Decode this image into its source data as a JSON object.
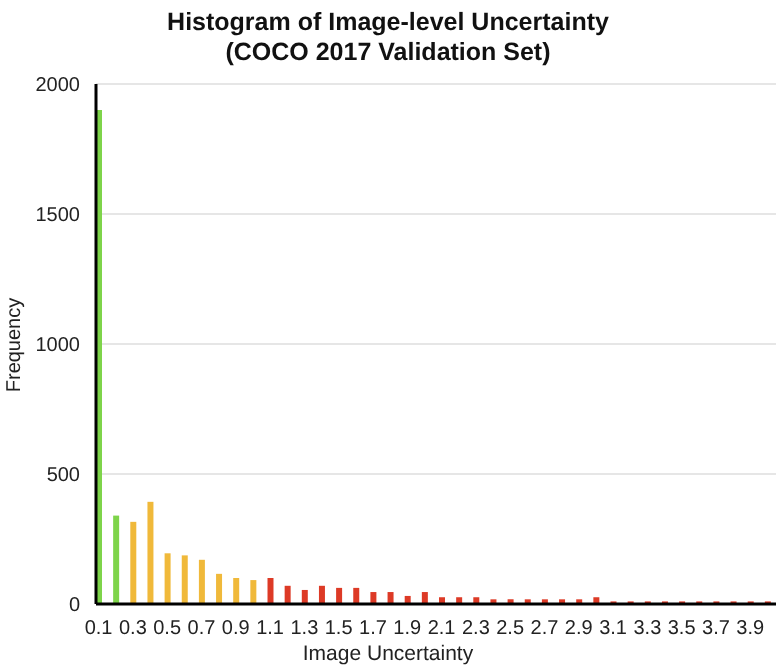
{
  "chart_data": {
    "type": "bar",
    "title": "Histogram of Image-level Uncertainty\n(COCO 2017 Validation Set)",
    "xlabel": "Image Uncertainty",
    "ylabel": "Frequency",
    "categories": [
      "0.1",
      null,
      "0.3",
      null,
      "0.5",
      null,
      "0.7",
      null,
      "0.9",
      null,
      "1.1",
      null,
      "1.3",
      null,
      "1.5",
      null,
      "1.7",
      null,
      "1.9",
      null,
      "2.1",
      null,
      "2.3",
      null,
      "2.5",
      null,
      "2.7",
      null,
      "2.9",
      null,
      "3.1",
      null,
      "3.3",
      null,
      "3.5",
      null,
      "3.7",
      null,
      "3.9",
      null
    ],
    "values": [
      1900,
      340,
      316,
      393,
      195,
      187,
      170,
      116,
      100,
      92,
      100,
      70,
      54,
      70,
      62,
      62,
      46,
      46,
      31,
      46,
      26,
      26,
      26,
      18,
      18,
      18,
      18,
      18,
      18,
      26,
      10,
      10,
      10,
      10,
      10,
      10,
      10,
      10,
      10,
      10
    ],
    "colors": [
      "#7ed44a",
      "#7ed44a",
      "#f0b93a",
      "#f0b93a",
      "#f0b93a",
      "#f0b93a",
      "#f0b93a",
      "#f0b93a",
      "#f0b93a",
      "#f0b93a",
      "#dd3a26",
      "#dd3a26",
      "#dd3a26",
      "#dd3a26",
      "#dd3a26",
      "#dd3a26",
      "#dd3a26",
      "#dd3a26",
      "#dd3a26",
      "#dd3a26",
      "#dd3a26",
      "#dd3a26",
      "#dd3a26",
      "#dd3a26",
      "#dd3a26",
      "#dd3a26",
      "#dd3a26",
      "#dd3a26",
      "#dd3a26",
      "#dd3a26",
      "#dd3a26",
      "#dd3a26",
      "#dd3a26",
      "#dd3a26",
      "#dd3a26",
      "#dd3a26",
      "#dd3a26",
      "#dd3a26",
      "#dd3a26",
      "#dd3a26"
    ],
    "ylim": [
      0,
      2000
    ],
    "yticks": [
      0,
      500,
      1000,
      1500,
      2000
    ],
    "grid": "y"
  }
}
